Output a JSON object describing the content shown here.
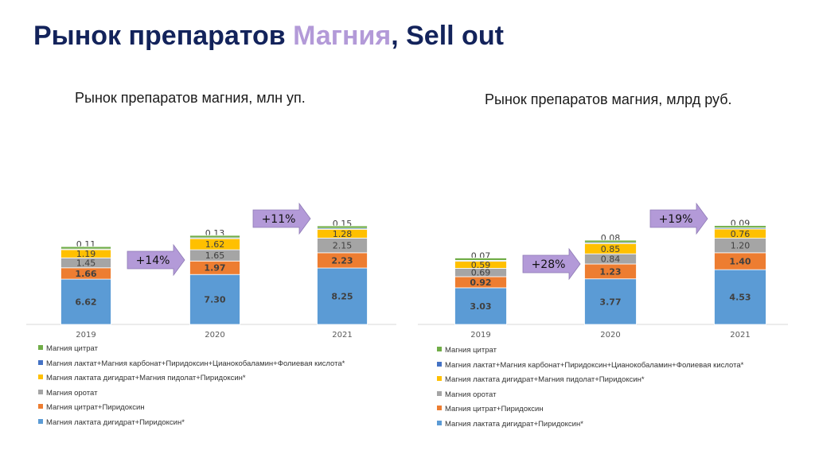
{
  "title": {
    "main": "Рынок препаратов ",
    "accent": "Магния",
    "suffix": ", Sell out"
  },
  "colors": {
    "title": "#13235b",
    "accent": "#b39ad8",
    "arrow": "#b39ad8",
    "series": [
      "#5b9bd5",
      "#ed7d31",
      "#a5a5a5",
      "#ffc000",
      "#4472c4",
      "#70ad47"
    ]
  },
  "chart_data": [
    {
      "type": "bar",
      "stacked": true,
      "title": "Рынок препаратов магния, млн уп.",
      "categories": [
        "2019",
        "2020",
        "2021"
      ],
      "series": [
        {
          "name": "Магния лактата дигидрат+Пиридоксин*",
          "values": [
            6.62,
            7.3,
            8.25
          ]
        },
        {
          "name": "Магния цитрат+Пиридоксин",
          "values": [
            1.66,
            1.97,
            2.23
          ]
        },
        {
          "name": "Магния оротат",
          "values": [
            1.45,
            1.65,
            2.15
          ]
        },
        {
          "name": "Магния лактата дигидрат+Магния пидолат+Пиридоксин*",
          "values": [
            1.19,
            1.62,
            1.28
          ]
        },
        {
          "name": "Магния лактат+Магния карбонат+Пиридоксин+Цианокобаламин+Фолиевая кислота*",
          "values": [
            0.11,
            0.13,
            0.15
          ]
        },
        {
          "name": "Магния цитрат",
          "values": [
            0.0,
            0.0,
            0.0
          ]
        }
      ],
      "value_labels": [
        [
          "6.62",
          "7.30",
          "8.25"
        ],
        [
          "1.66",
          "1.97",
          "2.23"
        ],
        [
          "1.45",
          "1.65",
          "2.15"
        ],
        [
          "1.19",
          "1.62",
          "1.28"
        ],
        [
          "0.11",
          "0.13",
          "0.15"
        ],
        [
          "",
          "",
          ""
        ]
      ],
      "growth_labels": [
        "+14%",
        "+11%"
      ],
      "legend_position": "bottom",
      "grid": false
    },
    {
      "type": "bar",
      "stacked": true,
      "title": "Рынок препаратов магния, млрд руб.",
      "categories": [
        "2019",
        "2020",
        "2021"
      ],
      "series": [
        {
          "name": "Магния лактата дигидрат+Пиридоксин*",
          "values": [
            3.03,
            3.77,
            4.53
          ]
        },
        {
          "name": "Магния цитрат+Пиридоксин",
          "values": [
            0.92,
            1.23,
            1.4
          ]
        },
        {
          "name": "Магния оротат",
          "values": [
            0.69,
            0.84,
            1.2
          ]
        },
        {
          "name": "Магния лактата дигидрат+Магния пидолат+Пиридоксин*",
          "values": [
            0.59,
            0.85,
            0.76
          ]
        },
        {
          "name": "Магния лактат+Магния карбонат+Пиридоксин+Цианокобаламин+Фолиевая кислота*",
          "values": [
            0.07,
            0.08,
            0.09
          ]
        },
        {
          "name": "Магния цитрат",
          "values": [
            0.0,
            0.0,
            0.0
          ]
        }
      ],
      "value_labels": [
        [
          "3.03",
          "3.77",
          "4.53"
        ],
        [
          "0.92",
          "1.23",
          "1.40"
        ],
        [
          "0.69",
          "0.84",
          "1.20"
        ],
        [
          "0.59",
          "0.85",
          "0.76"
        ],
        [
          "0.07",
          "0.08",
          "0.09"
        ],
        [
          "",
          "",
          ""
        ]
      ],
      "growth_labels": [
        "+28%",
        "+19%"
      ],
      "legend_position": "bottom",
      "grid": false
    }
  ]
}
